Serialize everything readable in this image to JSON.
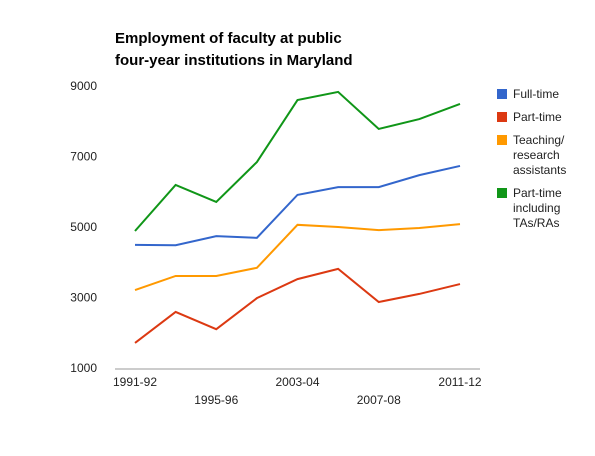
{
  "chart_data": {
    "type": "line",
    "title": "Employment of faculty at public four-year institutions in Maryland",
    "categories": [
      "1991-92",
      null,
      "1995-96",
      null,
      "2003-04",
      null,
      "2007-08",
      null,
      "2011-12"
    ],
    "series": [
      {
        "name": "Full-time",
        "color": "#3366cc",
        "values": [
          4520,
          4510,
          4770,
          4720,
          5940,
          6160,
          6160,
          6500,
          6760
        ]
      },
      {
        "name": "Part-time",
        "color": "#dc3912",
        "values": [
          1740,
          2620,
          2130,
          3010,
          3550,
          3840,
          2900,
          3130,
          3410
        ]
      },
      {
        "name": "Teaching/ research assistants",
        "color": "#ff9900",
        "values": [
          3240,
          3640,
          3640,
          3870,
          5090,
          5030,
          4940,
          5000,
          5110
        ]
      },
      {
        "name": "Part-time including TAs/RAs",
        "color": "#109618",
        "values": [
          4915,
          6220,
          5740,
          6870,
          8630,
          8860,
          7810,
          8090,
          8520
        ]
      }
    ],
    "ylim": [
      1000,
      9000
    ],
    "yticks": [
      1000,
      3000,
      5000,
      7000,
      9000
    ],
    "grid": false,
    "legend": "right"
  }
}
